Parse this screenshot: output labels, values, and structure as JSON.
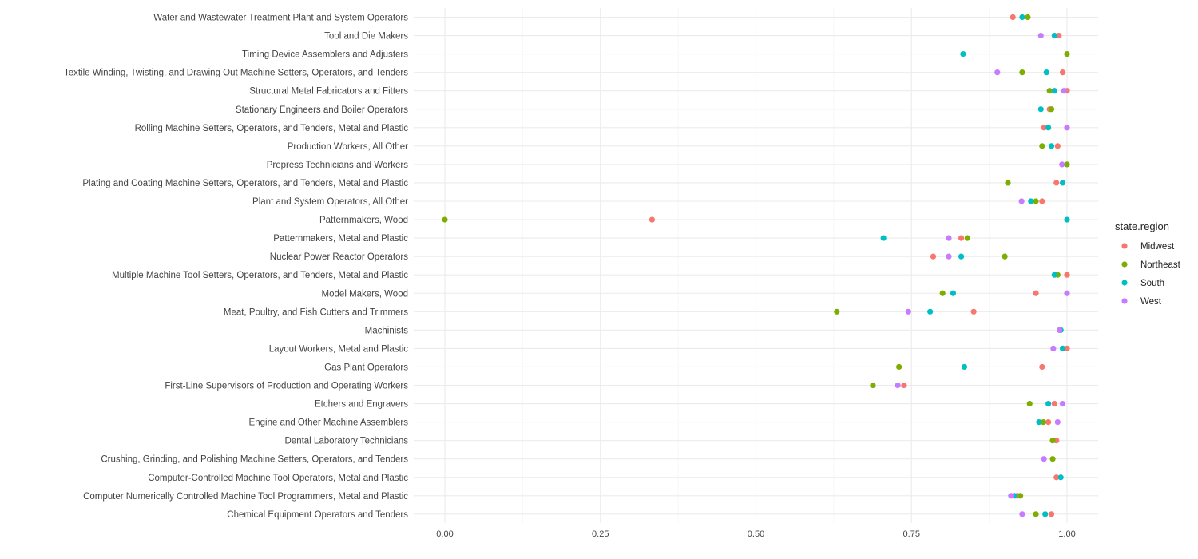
{
  "chart_data": {
    "type": "scatter",
    "title": "",
    "xlabel": "",
    "ylabel": "",
    "xlim": [
      -0.025,
      1.05
    ],
    "x_ticks": [
      0.0,
      0.25,
      0.5,
      0.75,
      1.0
    ],
    "x_tick_labels": [
      "0.00",
      "0.25",
      "0.50",
      "0.75",
      "1.00"
    ],
    "grid": true,
    "legend": {
      "title": "state.region",
      "position": "right"
    },
    "categories": [
      "Water and Wastewater Treatment Plant and System Operators",
      "Tool and Die Makers",
      "Timing Device Assemblers and Adjusters",
      "Textile Winding, Twisting, and Drawing Out Machine Setters, Operators, and Tenders",
      "Structural Metal Fabricators and Fitters",
      "Stationary Engineers and Boiler Operators",
      "Rolling Machine Setters, Operators, and Tenders, Metal and Plastic",
      "Production Workers, All Other",
      "Prepress Technicians and Workers",
      "Plating and Coating Machine Setters, Operators, and Tenders, Metal and Plastic",
      "Plant and System Operators, All Other",
      "Patternmakers, Wood",
      "Patternmakers, Metal and Plastic",
      "Nuclear Power Reactor Operators",
      "Multiple Machine Tool Setters, Operators, and Tenders, Metal and Plastic",
      "Model Makers, Wood",
      "Meat, Poultry, and Fish Cutters and Trimmers",
      "Machinists",
      "Layout Workers, Metal and Plastic",
      "Gas Plant Operators",
      "First-Line Supervisors of Production and Operating Workers",
      "Etchers and Engravers",
      "Engine and Other Machine Assemblers",
      "Dental Laboratory Technicians",
      "Crushing, Grinding, and Polishing Machine Setters, Operators, and Tenders",
      "Computer-Controlled Machine Tool Operators, Metal and Plastic",
      "Computer Numerically Controlled Machine Tool Programmers, Metal and Plastic",
      "Chemical Equipment Operators and Tenders"
    ],
    "series": [
      {
        "name": "Midwest",
        "color": "#F8766D",
        "values": [
          0.913,
          0.987,
          null,
          0.993,
          1.0,
          0.972,
          0.963,
          0.985,
          null,
          0.983,
          0.96,
          0.333,
          0.83,
          0.785,
          1.0,
          0.95,
          0.85,
          0.988,
          1.0,
          0.96,
          0.738,
          0.98,
          0.97,
          0.983,
          null,
          0.983,
          0.92,
          0.975
        ]
      },
      {
        "name": "Northeast",
        "color": "#7CAE00",
        "values": [
          0.937,
          null,
          1.0,
          0.928,
          0.972,
          0.975,
          null,
          0.96,
          1.0,
          0.905,
          0.95,
          0.0,
          0.84,
          0.9,
          0.985,
          0.8,
          0.63,
          null,
          null,
          0.73,
          0.688,
          0.94,
          0.962,
          0.977,
          0.977,
          null,
          0.925,
          0.95
        ]
      },
      {
        "name": "South",
        "color": "#00BFC4",
        "values": [
          0.928,
          0.98,
          0.833,
          0.967,
          0.98,
          0.958,
          0.97,
          0.975,
          null,
          0.993,
          0.942,
          1.0,
          0.705,
          0.83,
          0.98,
          0.817,
          0.78,
          0.99,
          0.993,
          0.835,
          null,
          0.97,
          0.955,
          null,
          null,
          0.99,
          0.915,
          0.965
        ]
      },
      {
        "name": "West",
        "color": "#C77CFF",
        "values": [
          null,
          0.958,
          null,
          0.888,
          0.995,
          null,
          1.0,
          null,
          0.992,
          null,
          0.927,
          null,
          0.81,
          0.81,
          null,
          1.0,
          0.745,
          0.988,
          0.978,
          null,
          0.728,
          0.993,
          0.985,
          null,
          0.963,
          null,
          0.91,
          0.928
        ]
      }
    ]
  }
}
